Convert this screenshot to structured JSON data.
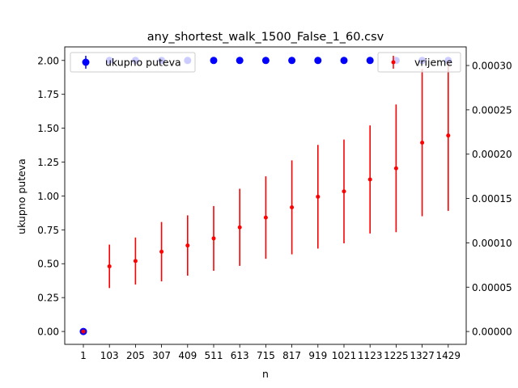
{
  "chart_data": {
    "type": "scatter",
    "title": "any_shortest_walk_1500_False_1_60.csv",
    "xlabel": "n",
    "ylabel": "ukupno puteva",
    "categories": [
      "1",
      "103",
      "205",
      "307",
      "409",
      "511",
      "613",
      "715",
      "817",
      "919",
      "1021",
      "1123",
      "1225",
      "1327",
      "1429"
    ],
    "y_ticks": [
      "0.00",
      "0.25",
      "0.50",
      "0.75",
      "1.00",
      "1.25",
      "1.50",
      "1.75",
      "2.00"
    ],
    "y_ticks_values": [
      0,
      0.25,
      0.5,
      0.75,
      1.0,
      1.25,
      1.5,
      1.75,
      2.0
    ],
    "y_right_ticks": [
      "0.00000",
      "0.00005",
      "0.00010",
      "0.00015",
      "0.00020",
      "0.00025",
      "0.00030"
    ],
    "y_right_ticks_values": [
      0,
      5e-05,
      0.0001,
      0.00015,
      0.0002,
      0.00025,
      0.0003
    ],
    "ylim": [
      -0.095,
      2.1
    ],
    "ylim_right": [
      -1.45e-05,
      0.000321
    ],
    "series": [
      {
        "name": "ukupno puteva",
        "axis": "left",
        "color": "#0000ff",
        "values": [
          0,
          2,
          2,
          2,
          2,
          2,
          2,
          2,
          2,
          2,
          2,
          2,
          2,
          2,
          2
        ],
        "errors": [
          0,
          0,
          0,
          0,
          0,
          0,
          0,
          0,
          0,
          0,
          0,
          0,
          0,
          0,
          0
        ]
      },
      {
        "name": "vrijeme",
        "axis": "right",
        "color": "#ff0000",
        "values": [
          0,
          7.35e-05,
          7.95e-05,
          9e-05,
          9.7e-05,
          0.000105,
          0.0001175,
          0.0001285,
          0.00014,
          0.000152,
          0.000158,
          0.0001715,
          0.000184,
          0.000213,
          0.000221
        ],
        "errors": [
          0,
          2.45e-05,
          2.65e-05,
          3.35e-05,
          3.4e-05,
          3.65e-05,
          4.35e-05,
          4.65e-05,
          5.3e-05,
          5.85e-05,
          5.85e-05,
          6.1e-05,
          7.2e-05,
          8.3e-05,
          8.5e-05
        ]
      }
    ],
    "legend_left": {
      "label": "ukupno puteva",
      "position": "upper-left"
    },
    "legend_right": {
      "label": "vrijeme",
      "position": "upper-right"
    }
  }
}
